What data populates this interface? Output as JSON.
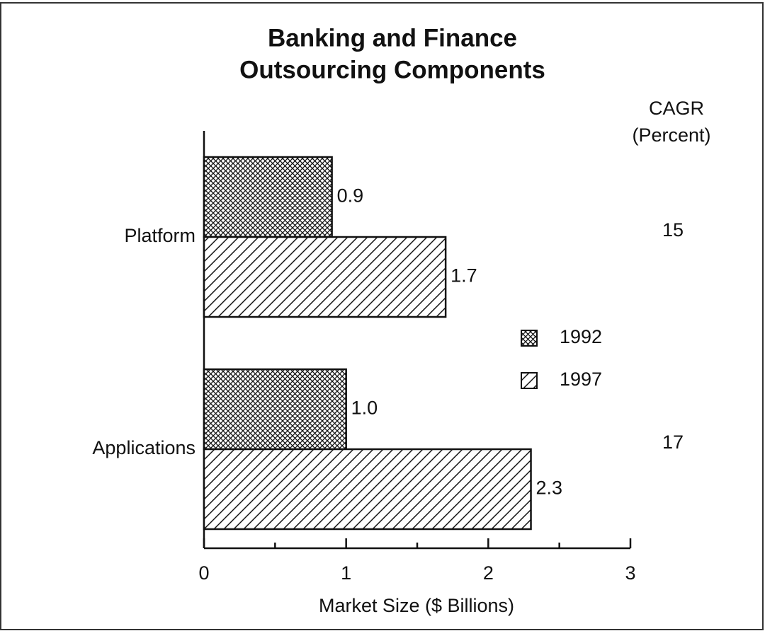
{
  "chart_data": {
    "type": "hbar",
    "title": [
      "Banking and Finance",
      "Outsourcing Components"
    ],
    "categories": [
      "Platform",
      "Applications"
    ],
    "series": [
      {
        "name": "1992",
        "color": "#111111",
        "pattern": "crosshatch",
        "values": [
          0.9,
          1.0
        ],
        "value_labels": [
          "0.9",
          "1.0"
        ]
      },
      {
        "name": "1997",
        "color": "#111111",
        "pattern": "diagonal",
        "values": [
          1.7,
          2.3
        ],
        "value_labels": [
          "1.7",
          "2.3"
        ]
      }
    ],
    "xlabel": "Market Size ($ Billions)",
    "xlim": [
      0,
      3
    ],
    "xticks": [
      0,
      1,
      2,
      3
    ],
    "xminorticks": [
      0.5,
      1.5,
      2.5
    ],
    "cagr_heading": [
      "CAGR",
      "(Percent)"
    ],
    "cagr_values": [
      15,
      17
    ],
    "legend": "center-right"
  }
}
